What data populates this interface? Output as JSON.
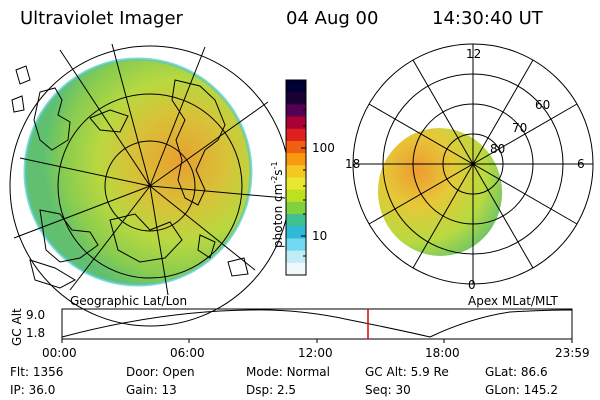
{
  "header": {
    "instrument": "Ultraviolet Imager",
    "date": "04 Aug 00",
    "time": "14:30:40 UT"
  },
  "left_map": {
    "caption": "Geographic Lat/Lon"
  },
  "right_map": {
    "caption": "Apex MLat/MLT",
    "mlt_labels": {
      "top": "12",
      "left": "18",
      "right": "6",
      "bottom": "0"
    },
    "lat_labels": [
      "60",
      "70",
      "80"
    ]
  },
  "colorbar": {
    "unit_label": "photon cm",
    "unit_sup1": "-2",
    "unit_mid": "s",
    "unit_sup2": "-1",
    "ticks": [
      "100",
      "10"
    ],
    "colors": [
      "#000033",
      "#1a0033",
      "#550055",
      "#aa0033",
      "#e02020",
      "#f06010",
      "#f79a10",
      "#f5c820",
      "#e8e830",
      "#bde020",
      "#80d040",
      "#40c090",
      "#30b8d8",
      "#70d8f0",
      "#c0ecf6",
      "#f0f8fb"
    ]
  },
  "timeline": {
    "ylabel": "GC Alt",
    "y_ticks": [
      "9.0",
      "1.8"
    ],
    "x_ticks": [
      "00:00",
      "06:00",
      "12:00",
      "18:00",
      "23:59"
    ],
    "marker_color": "#dd0000"
  },
  "info": {
    "row1": [
      {
        "label": "Flt:",
        "value": "1356"
      },
      {
        "label": "Door:",
        "value": "Open"
      },
      {
        "label": "Mode:",
        "value": "Normal"
      },
      {
        "label": "GC Alt:",
        "value": "5.9 Re"
      },
      {
        "label": "GLat:",
        "value": "86.6"
      }
    ],
    "row2": [
      {
        "label": "IP:",
        "value": "36.0"
      },
      {
        "label": "Gain:",
        "value": "13"
      },
      {
        "label": "Dsp:",
        "value": "2.5"
      },
      {
        "label": "Seq:",
        "value": "30"
      },
      {
        "label": "GLon:",
        "value": "145.2"
      }
    ]
  }
}
